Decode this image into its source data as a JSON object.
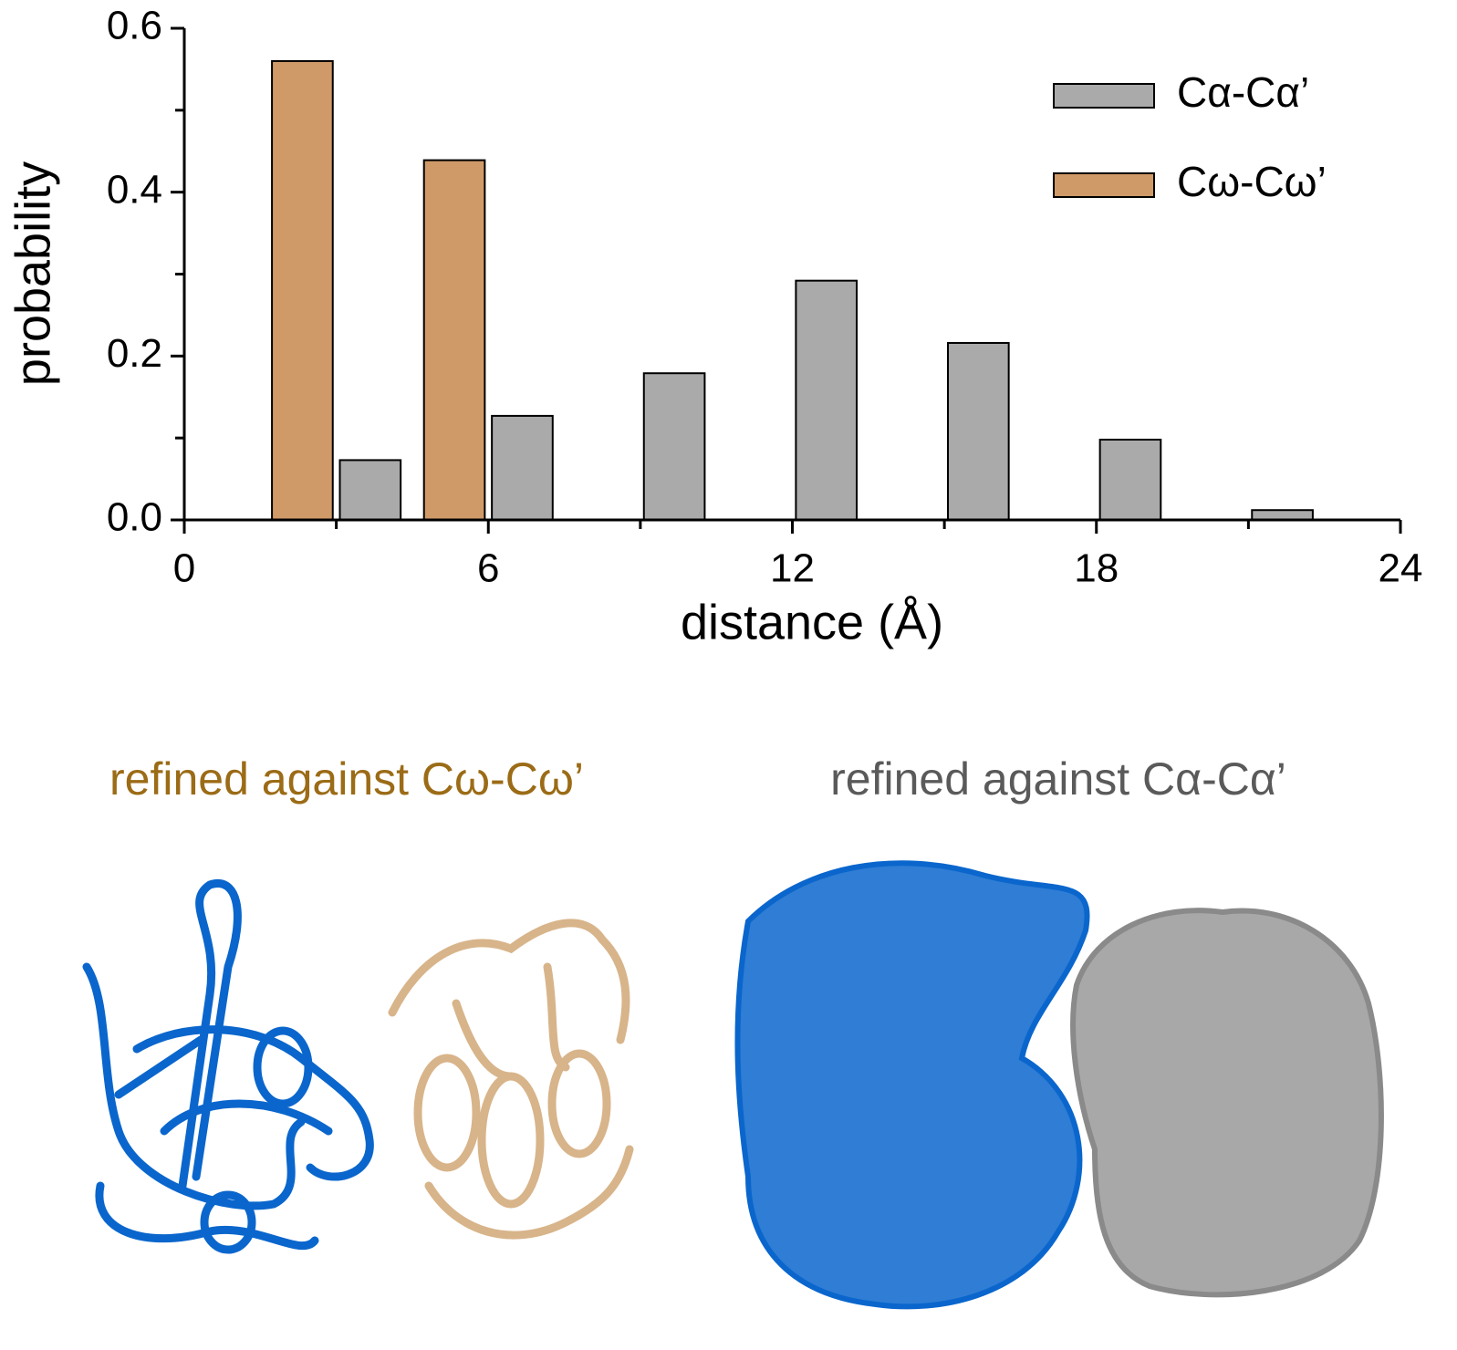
{
  "chart_data": {
    "type": "bar",
    "xlabel": "distance (Å)",
    "ylabel": "probability",
    "series": [
      {
        "name": "Cα-Cα’",
        "color": "#aaaaaa",
        "x": [
          3.67,
          6.67,
          9.67,
          12.67,
          15.67,
          18.67,
          21.67
        ],
        "values": [
          0.073,
          0.127,
          0.179,
          0.292,
          0.216,
          0.098,
          0.012
        ]
      },
      {
        "name": "Cω-Cω’",
        "color": "#cf9a68",
        "x": [
          2.33,
          5.33
        ],
        "values": [
          0.56,
          0.439
        ]
      }
    ],
    "xlim": [
      0,
      24
    ],
    "xticks": [
      0,
      6,
      12,
      18,
      24
    ],
    "xminorticks": [
      3,
      9,
      15,
      21
    ],
    "ylim": [
      0,
      0.6
    ],
    "yticks": [
      {
        "value": 0,
        "label": "0.0"
      },
      0.2,
      0.4,
      0.6
    ],
    "yminorticks": [
      0.1,
      0.3,
      0.5
    ],
    "legend": "top-right"
  },
  "panels": [
    {
      "title": "refined against Cω-Cω’",
      "color": "#9b6b16"
    },
    {
      "title": "refined against Cα-Cα’",
      "color": "#5a5a5a"
    }
  ]
}
